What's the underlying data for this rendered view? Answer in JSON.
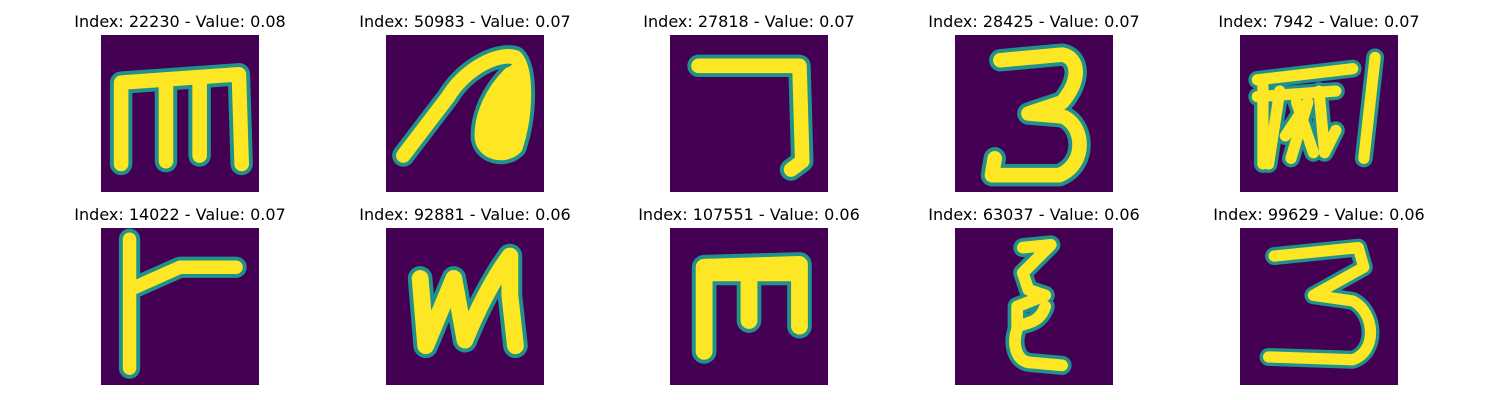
{
  "figure": {
    "panels": [
      {
        "title": "Index: 22230 - Value: 0.08",
        "glyph": "m"
      },
      {
        "title": "Index: 50983 - Value: 0.07",
        "glyph": "n-curl"
      },
      {
        "title": "Index: 27818 - Value: 0.07",
        "glyph": "seven"
      },
      {
        "title": "Index: 28425 - Value: 0.07",
        "glyph": "three"
      },
      {
        "title": "Index: 7942 - Value: 0.07",
        "glyph": "scribble"
      },
      {
        "title": "Index: 14022 - Value: 0.07",
        "glyph": "flag"
      },
      {
        "title": "Index: 92881 - Value: 0.06",
        "glyph": "n-script"
      },
      {
        "title": "Index: 107551 - Value: 0.06",
        "glyph": "m-block"
      },
      {
        "title": "Index: 63037 - Value: 0.06",
        "glyph": "epsilon"
      },
      {
        "title": "Index: 99629 - Value: 0.06",
        "glyph": "three-b"
      }
    ],
    "colors": {
      "background": "#440154",
      "stroke": "#fde725",
      "edge": "#21918c"
    }
  }
}
